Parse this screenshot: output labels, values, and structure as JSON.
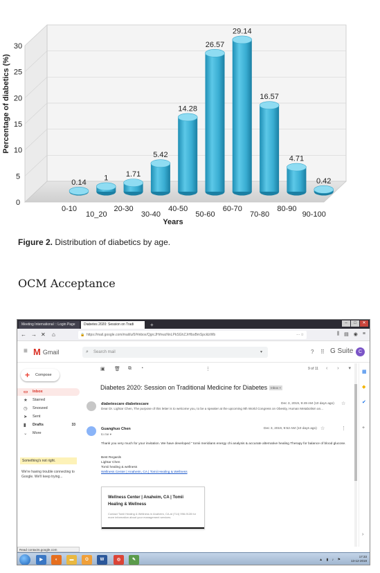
{
  "chart_data": {
    "type": "bar",
    "categories": [
      "0-10",
      "10_20",
      "20-30",
      "30-40",
      "40-50",
      "50-60",
      "60-70",
      "70-80",
      "80-90",
      "90-100"
    ],
    "values": [
      0.14,
      1,
      1.71,
      5.42,
      14.28,
      26.57,
      29.14,
      16.57,
      4.71,
      0.42
    ],
    "value_labels": [
      "0.14",
      "1",
      "1.71",
      "5.42",
      "14.28",
      "26.57",
      "29.14",
      "16.57",
      "4.71",
      "0.42"
    ],
    "xlabel": "Years",
    "ylabel": "Percentage of diabetics (%)",
    "ylim": [
      0,
      30
    ],
    "yticks": [
      0,
      5,
      10,
      15,
      20,
      25,
      30
    ],
    "grid": true,
    "bar_color": "#3fb3d6",
    "bar_shape": "cylinder"
  },
  "caption": {
    "label": "Figure 2.",
    "text": " Distribution of diabetics by age."
  },
  "section_heading": "OCM Acceptance",
  "screenshot": {
    "tabs": [
      {
        "label": "Meeting International :: Login Page"
      },
      {
        "label": "Diabetes 2020: Session on Tradi"
      }
    ],
    "url": "https://mail.google.com/mail/u/0/#inbox/QgrcJHrhwzNnLPkSGhZJrHbsBmSpcklzWb",
    "gmail_label": "Gmail",
    "search_placeholder": "Search mail",
    "gsuite_label": "G Suite",
    "avatar_letter": "C",
    "compose_label": "Compose",
    "sidebar": [
      {
        "label": "Inbox",
        "count": ""
      },
      {
        "label": "Starred",
        "count": ""
      },
      {
        "label": "Snoozed",
        "count": ""
      },
      {
        "label": "Sent",
        "count": ""
      },
      {
        "label": "Drafts",
        "count": "33"
      },
      {
        "label": "More",
        "count": ""
      }
    ],
    "warning_title": "Something's not right.",
    "warning_msg": "We're having trouble connecting to Google. We'll keep trying...",
    "pager": "9 of 11",
    "subject": "Diabetes 2020: Session on Traditional Medicine for Diabetes",
    "inbox_tag": "Inbox ×",
    "message1": {
      "sender": "diabetescare diabetescare",
      "date": "Dec 3, 2019, 9:49 AM (10 days ago)",
      "preview": "Dear Dr. Lightar Chen, The purpose of this letter is to welcome you, to be a speaker at the upcoming 9th World Congress on Obesity, Human Metabolism an..."
    },
    "message2": {
      "sender": "Guanghuo Chen",
      "to": "to me ▾",
      "date": "Dec 3, 2019, 9:52 AM (10 days ago)",
      "body": "Thank you very much for your invitation. We have developed \" tomii meridians energy chi analysis & accurate alternative healing Therapy for balance of blood glucose.",
      "sig": [
        "Best Regards",
        "Lightar Chen",
        "Tomii healing & wellness"
      ],
      "sig_link": "Wellness Center | Anaheim, CA | Tomii Healing & Wellness"
    },
    "card": {
      "title": "Wellness Center | Anaheim, CA | Tomii Healing & Wellness",
      "desc": "Contact Tomii Healing & Wellness in Anaheim, CA at (714) 998-9128 for more information about your management services."
    },
    "status_text": "Read contacts.google.com",
    "clock": {
      "time": "17:33",
      "date": "13-12-2019"
    }
  }
}
